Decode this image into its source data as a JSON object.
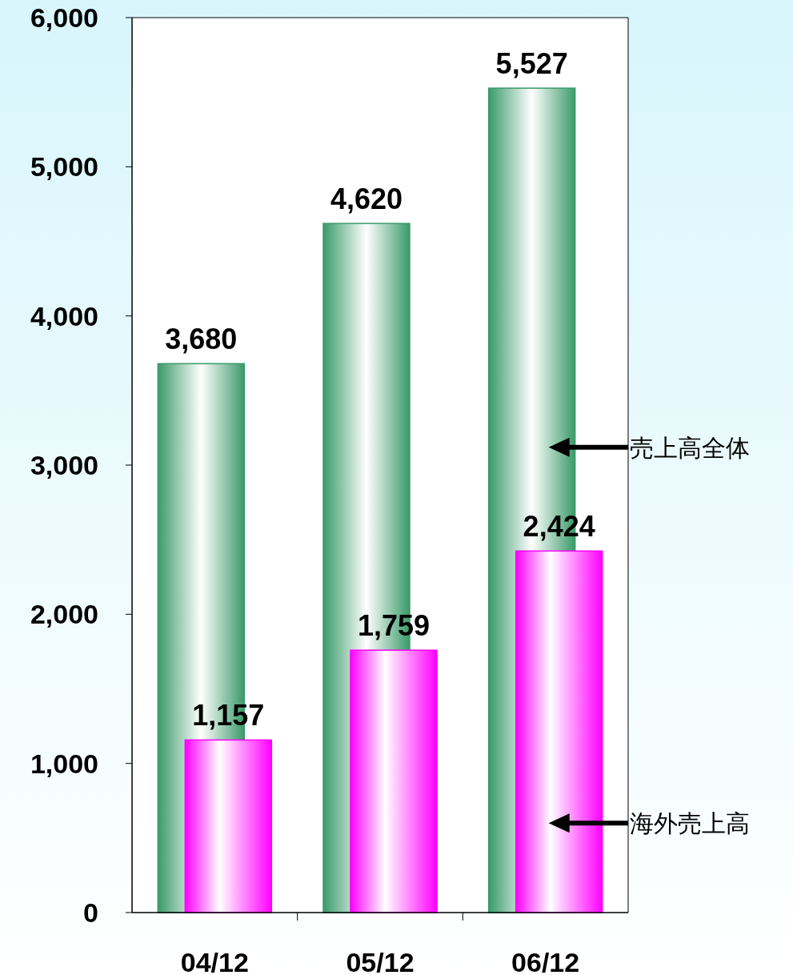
{
  "chart_data": {
    "type": "bar",
    "categories": [
      "04/12",
      "05/12",
      "06/12"
    ],
    "series": [
      {
        "color": "#3a9a6a",
        "values": [
          3680,
          4620,
          5527
        ],
        "value_labels": [
          "3,680",
          "4,620",
          "5,527"
        ]
      },
      {
        "color": "#ff00ff",
        "values": [
          1157,
          1759,
          2424
        ],
        "value_labels": [
          "1,157",
          "1,759",
          "2,424"
        ]
      }
    ],
    "ylim": [
      0,
      6000
    ],
    "yticks": [
      {
        "value": 0,
        "label": "0"
      },
      {
        "value": 1000,
        "label": "1,000"
      },
      {
        "value": 2000,
        "label": "2,000"
      },
      {
        "value": 3000,
        "label": "3,000"
      },
      {
        "value": 4000,
        "label": "4,000"
      },
      {
        "value": 5000,
        "label": "5,000"
      },
      {
        "value": 6000,
        "label": "6,000"
      }
    ],
    "grid": false,
    "annotations": [
      "売上高全体",
      "海外売上高"
    ]
  }
}
